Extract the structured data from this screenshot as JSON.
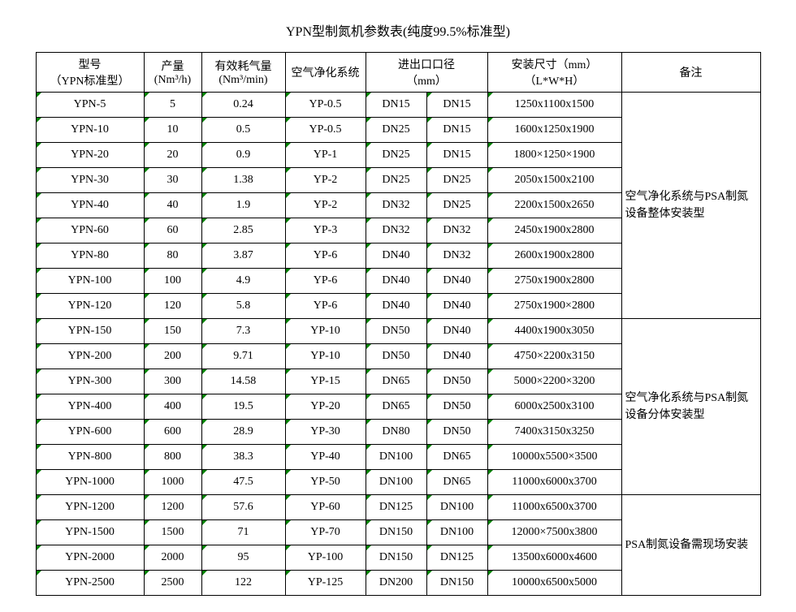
{
  "title": "YPN型制氮机参数表(纯度99.5%标准型)",
  "headers": {
    "model": "型号\n（YPN标准型）",
    "yield": "产量\n(Nm³/h)",
    "air": "有效耗气量\n(Nm³/min)",
    "purify": "空气净化系统",
    "port": "进出口口径\n（mm）",
    "dim": "安装尺寸（mm）\n（L*W*H）",
    "note": "备注"
  },
  "rows": [
    {
      "model": "YPN-5",
      "yield": "5",
      "air": "0.24",
      "purify": "YP-0.5",
      "p1": "DN15",
      "p2": "DN15",
      "dim": "1250x1100x1500"
    },
    {
      "model": "YPN-10",
      "yield": "10",
      "air": "0.5",
      "purify": "YP-0.5",
      "p1": "DN25",
      "p2": "DN15",
      "dim": "1600x1250x1900"
    },
    {
      "model": "YPN-20",
      "yield": "20",
      "air": "0.9",
      "purify": "YP-1",
      "p1": "DN25",
      "p2": "DN15",
      "dim": "1800×1250×1900"
    },
    {
      "model": "YPN-30",
      "yield": "30",
      "air": "1.38",
      "purify": "YP-2",
      "p1": "DN25",
      "p2": "DN25",
      "dim": "2050x1500x2100"
    },
    {
      "model": "YPN-40",
      "yield": "40",
      "air": "1.9",
      "purify": "YP-2",
      "p1": "DN32",
      "p2": "DN25",
      "dim": "2200x1500x2650"
    },
    {
      "model": "YPN-60",
      "yield": "60",
      "air": "2.85",
      "purify": "YP-3",
      "p1": "DN32",
      "p2": "DN32",
      "dim": "2450x1900x2800"
    },
    {
      "model": "YPN-80",
      "yield": "80",
      "air": "3.87",
      "purify": "YP-6",
      "p1": "DN40",
      "p2": "DN32",
      "dim": "2600x1900x2800"
    },
    {
      "model": "YPN-100",
      "yield": "100",
      "air": "4.9",
      "purify": "YP-6",
      "p1": "DN40",
      "p2": "DN40",
      "dim": "2750x1900x2800"
    },
    {
      "model": "YPN-120",
      "yield": "120",
      "air": "5.8",
      "purify": "YP-6",
      "p1": "DN40",
      "p2": "DN40",
      "dim": "2750x1900×2800"
    },
    {
      "model": "YPN-150",
      "yield": "150",
      "air": "7.3",
      "purify": "YP-10",
      "p1": "DN50",
      "p2": "DN40",
      "dim": "4400x1900x3050"
    },
    {
      "model": "YPN-200",
      "yield": "200",
      "air": "9.71",
      "purify": "YP-10",
      "p1": "DN50",
      "p2": "DN40",
      "dim": "4750×2200x3150"
    },
    {
      "model": "YPN-300",
      "yield": "300",
      "air": "14.58",
      "purify": "YP-15",
      "p1": "DN65",
      "p2": "DN50",
      "dim": "5000×2200×3200"
    },
    {
      "model": "YPN-400",
      "yield": "400",
      "air": "19.5",
      "purify": "YP-20",
      "p1": "DN65",
      "p2": "DN50",
      "dim": "6000x2500x3100"
    },
    {
      "model": "YPN-600",
      "yield": "600",
      "air": "28.9",
      "purify": "YP-30",
      "p1": "DN80",
      "p2": "DN50",
      "dim": "7400x3150x3250"
    },
    {
      "model": "YPN-800",
      "yield": "800",
      "air": "38.3",
      "purify": "YP-40",
      "p1": "DN100",
      "p2": "DN65",
      "dim": "10000x5500×3500"
    },
    {
      "model": "YPN-1000",
      "yield": "1000",
      "air": "47.5",
      "purify": "YP-50",
      "p1": "DN100",
      "p2": "DN65",
      "dim": "11000x6000x3700"
    },
    {
      "model": "YPN-1200",
      "yield": "1200",
      "air": "57.6",
      "purify": "YP-60",
      "p1": "DN125",
      "p2": "DN100",
      "dim": "11000x6500x3700"
    },
    {
      "model": "YPN-1500",
      "yield": "1500",
      "air": "71",
      "purify": "YP-70",
      "p1": "DN150",
      "p2": "DN100",
      "dim": "12000×7500x3800"
    },
    {
      "model": "YPN-2000",
      "yield": "2000",
      "air": "95",
      "purify": "YP-100",
      "p1": "DN150",
      "p2": "DN125",
      "dim": "13500x6000x4600"
    },
    {
      "model": "YPN-2500",
      "yield": "2500",
      "air": "122",
      "purify": "YP-125",
      "p1": "DN200",
      "p2": "DN150",
      "dim": "10000x6500x5000"
    }
  ],
  "notes": [
    {
      "start": 0,
      "span": 9,
      "text": "空气净化系统与PSA制氮设备整体安装型"
    },
    {
      "start": 9,
      "span": 7,
      "text": "空气净化系统与PSA制氮设备分体安装型"
    },
    {
      "start": 16,
      "span": 4,
      "text": "PSA制氮设备需现场安装"
    }
  ],
  "style": {
    "border_color": "#000000",
    "background_color": "#ffffff",
    "text_color": "#000000",
    "triangle_marker_color": "#008000",
    "font_family": "SimSun",
    "title_fontsize": 16,
    "body_fontsize": 14
  }
}
